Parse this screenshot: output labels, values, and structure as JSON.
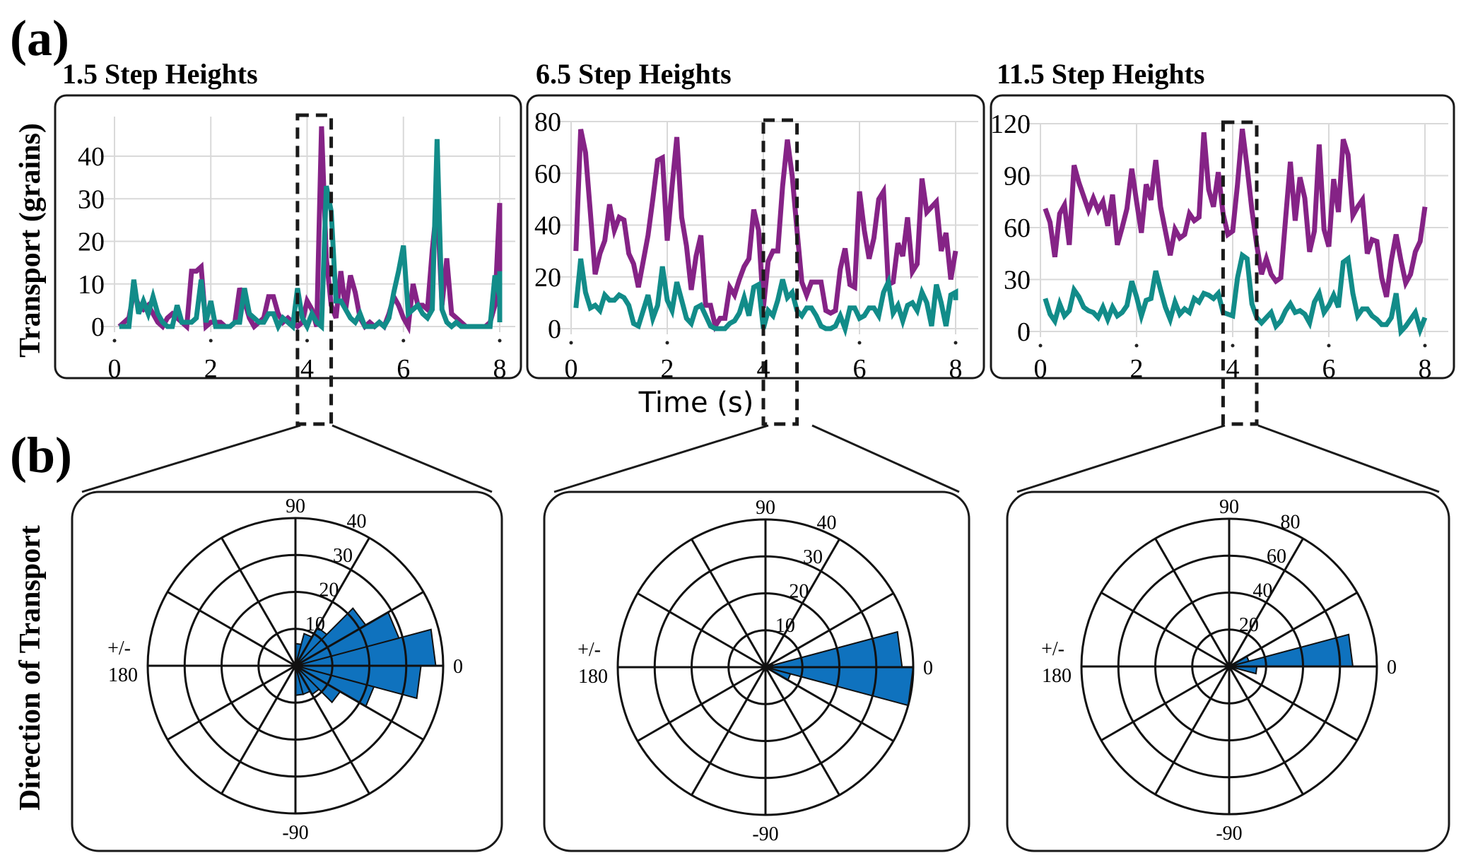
{
  "figure": {
    "panel_a_label": "(a)",
    "panel_b_label": "(b)",
    "ylabel_a": "Transport (grains)",
    "ylabel_b": "Direction of Transport",
    "xlabel_a": "Time (s)"
  },
  "colors": {
    "series_purple": "#852386",
    "series_teal": "#128c89",
    "rose_fill": "#0f72be",
    "grid": "#d9d9d9",
    "frame": "#1a1a1a"
  },
  "chart_data": [
    {
      "type": "line",
      "title": "1.5 Step Heights",
      "xlabel": "Time (s)",
      "ylabel": "Transport (grains)",
      "xlim": [
        0,
        8
      ],
      "ylim": [
        0,
        40
      ],
      "xticks": [
        "0",
        "2",
        "4",
        "6",
        "8"
      ],
      "yticks": [
        "0",
        "10",
        "20",
        "30",
        "40"
      ],
      "grid": true,
      "highlight_window": [
        3.8,
        4.5
      ],
      "x_start": 0.1,
      "x_step": 0.1,
      "series": [
        {
          "name": "purple",
          "color": "#852386",
          "values": [
            0,
            1,
            2,
            8,
            5,
            4,
            5,
            3,
            1,
            0,
            2,
            3,
            2,
            1,
            0,
            13,
            13,
            14,
            0,
            1,
            1,
            1,
            0,
            0,
            1,
            9,
            6,
            2,
            0,
            1,
            2,
            7,
            7,
            3,
            1,
            2,
            1,
            0,
            1,
            6,
            4,
            0,
            47,
            16,
            5,
            2,
            13,
            4,
            12,
            8,
            2,
            0,
            1,
            0,
            1,
            0,
            3,
            7,
            5,
            2,
            0,
            10,
            5,
            5,
            4,
            18,
            29,
            5,
            16,
            3,
            2,
            1,
            0,
            0,
            0,
            0,
            0,
            1,
            5,
            29,
            5,
            14
          ]
        },
        {
          "name": "teal",
          "color": "#128c89",
          "values": [
            0,
            0,
            0,
            11,
            3,
            6,
            3,
            7,
            3,
            1,
            0,
            0,
            5,
            1,
            1,
            1,
            2,
            11,
            1,
            6,
            0,
            0,
            0,
            0,
            1,
            1,
            9,
            3,
            2,
            1,
            1,
            3,
            3,
            0,
            2,
            1,
            0,
            9,
            2,
            0,
            3,
            1,
            0,
            33,
            27,
            6,
            6,
            4,
            2,
            1,
            3,
            0,
            0,
            0,
            1,
            0,
            2,
            8,
            13,
            19,
            3,
            4,
            5,
            3,
            2,
            4,
            44,
            4,
            1,
            0,
            1,
            0,
            0,
            0,
            0,
            0,
            0,
            0,
            12,
            7,
            2,
            13,
            1,
            1
          ]
        }
      ]
    },
    {
      "type": "line",
      "title": "6.5 Step Heights",
      "xlabel": "Time (s)",
      "ylabel": "Transport (grains)",
      "xlim": [
        0,
        8
      ],
      "ylim": [
        0,
        80
      ],
      "xticks": [
        "0",
        "2",
        "4",
        "6",
        "8"
      ],
      "yticks": [
        "0",
        "20",
        "40",
        "60",
        "80"
      ],
      "grid": true,
      "highlight_window": [
        4.0,
        4.7
      ],
      "x_start": 0.1,
      "x_step": 0.1,
      "series": [
        {
          "name": "purple",
          "color": "#852386",
          "values": [
            30,
            77,
            68,
            45,
            21,
            29,
            34,
            48,
            38,
            43,
            42,
            29,
            25,
            16,
            26,
            36,
            50,
            65,
            66,
            34,
            55,
            74,
            43,
            32,
            15,
            28,
            36,
            9,
            9,
            1,
            4,
            4,
            16,
            13,
            19,
            24,
            27,
            46,
            38,
            8,
            26,
            30,
            30,
            55,
            73,
            59,
            38,
            18,
            13,
            18,
            18,
            18,
            7,
            6,
            7,
            23,
            31,
            17,
            16,
            53,
            38,
            27,
            35,
            50,
            53,
            17,
            18,
            33,
            28,
            43,
            22,
            25,
            58,
            45,
            47,
            49,
            30,
            37,
            19,
            30
          ]
        },
        {
          "name": "teal",
          "color": "#128c89",
          "values": [
            8,
            27,
            14,
            8,
            9,
            7,
            13,
            11,
            11,
            13,
            12,
            9,
            2,
            1,
            7,
            13,
            4,
            9,
            24,
            11,
            7,
            18,
            11,
            4,
            2,
            8,
            9,
            5,
            1,
            0,
            0,
            0,
            2,
            3,
            6,
            12,
            5,
            16,
            17,
            0,
            7,
            5,
            11,
            19,
            12,
            14,
            7,
            5,
            8,
            8,
            5,
            1,
            0,
            0,
            1,
            5,
            0,
            8,
            8,
            4,
            5,
            8,
            8,
            5,
            14,
            18,
            6,
            9,
            3,
            9,
            10,
            7,
            14,
            10,
            1,
            17,
            10,
            1,
            13,
            14,
            11
          ]
        }
      ]
    },
    {
      "type": "line",
      "title": "11.5 Step Heights",
      "xlabel": "Time (s)",
      "ylabel": "Transport (grains)",
      "xlim": [
        0,
        8
      ],
      "ylim": [
        0,
        120
      ],
      "xticks": [
        "0",
        "2",
        "4",
        "6",
        "8"
      ],
      "yticks": [
        "0",
        "30",
        "60",
        "90",
        "120"
      ],
      "grid": true,
      "highlight_window": [
        3.8,
        4.5
      ],
      "x_start": 0.1,
      "x_step": 0.1,
      "series": [
        {
          "name": "purple",
          "color": "#852386",
          "values": [
            71,
            63,
            43,
            68,
            73,
            50,
            96,
            86,
            78,
            70,
            77,
            70,
            75,
            61,
            79,
            50,
            60,
            71,
            94,
            75,
            57,
            85,
            76,
            99,
            72,
            58,
            44,
            59,
            54,
            56,
            68,
            64,
            66,
            115,
            82,
            72,
            92,
            68,
            56,
            58,
            85,
            117,
            95,
            70,
            50,
            33,
            42,
            33,
            29,
            31,
            65,
            98,
            64,
            89,
            77,
            46,
            58,
            108,
            59,
            49,
            88,
            69,
            111,
            102,
            67,
            72,
            76,
            45,
            53,
            52,
            31,
            20,
            41,
            56,
            41,
            28,
            33,
            46,
            52,
            72
          ]
        },
        {
          "name": "teal",
          "color": "#128c89",
          "values": [
            19,
            10,
            6,
            16,
            9,
            12,
            24,
            20,
            14,
            12,
            11,
            8,
            14,
            7,
            14,
            9,
            11,
            15,
            29,
            20,
            9,
            18,
            19,
            35,
            24,
            14,
            7,
            17,
            10,
            13,
            11,
            19,
            17,
            22,
            21,
            19,
            22,
            11,
            10,
            9,
            31,
            44,
            42,
            16,
            8,
            5,
            8,
            11,
            3,
            6,
            12,
            16,
            11,
            12,
            10,
            5,
            17,
            22,
            11,
            15,
            21,
            14,
            40,
            42,
            22,
            9,
            13,
            13,
            9,
            7,
            4,
            4,
            8,
            22,
            0,
            3,
            7,
            11,
            1,
            8
          ]
        }
      ]
    },
    {
      "type": "polar_bar",
      "title": "Direction of Transport (1.5 Step Heights, window ~3.8-4.5 s)",
      "angle_unit": "degrees",
      "angle_labels": [
        "0",
        "90",
        "+/-",
        "180",
        "-90"
      ],
      "radial_max": 40,
      "radial_ticks": [
        "10",
        "20",
        "30",
        "40"
      ],
      "bin_width_deg": 15,
      "bins": [
        {
          "from": 0,
          "to": 15,
          "value": 38
        },
        {
          "from": 15,
          "to": 30,
          "value": 29
        },
        {
          "from": 30,
          "to": 45,
          "value": 22
        },
        {
          "from": 45,
          "to": 60,
          "value": 12
        },
        {
          "from": 60,
          "to": 75,
          "value": 9
        },
        {
          "from": 75,
          "to": 90,
          "value": 6
        },
        {
          "from": -15,
          "to": 0,
          "value": 34
        },
        {
          "from": -30,
          "to": -15,
          "value": 22
        },
        {
          "from": -45,
          "to": -30,
          "value": 14
        },
        {
          "from": -60,
          "to": -45,
          "value": 9
        },
        {
          "from": -75,
          "to": -60,
          "value": 8
        },
        {
          "from": -90,
          "to": -75,
          "value": 8
        }
      ]
    },
    {
      "type": "polar_bar",
      "title": "Direction of Transport (6.5 Step Heights, window ~4.0-4.7 s)",
      "angle_unit": "degrees",
      "angle_labels": [
        "0",
        "90",
        "+/-",
        "180",
        "-90"
      ],
      "radial_max": 40,
      "radial_ticks": [
        "10",
        "20",
        "30",
        "40"
      ],
      "bin_width_deg": 15,
      "bins": [
        {
          "from": 0,
          "to": 15,
          "value": 37
        },
        {
          "from": 15,
          "to": 30,
          "value": 2
        },
        {
          "from": -15,
          "to": 0,
          "value": 40
        },
        {
          "from": -30,
          "to": -15,
          "value": 7
        }
      ]
    },
    {
      "type": "polar_bar",
      "title": "Direction of Transport (11.5 Step Heights, window ~3.8-4.5 s)",
      "angle_unit": "degrees",
      "angle_labels": [
        "0",
        "90",
        "+/-",
        "180",
        "-90"
      ],
      "radial_max": 80,
      "radial_ticks": [
        "20",
        "40",
        "60",
        "80"
      ],
      "bin_width_deg": 15,
      "bins": [
        {
          "from": 0,
          "to": 15,
          "value": 67
        },
        {
          "from": 15,
          "to": 30,
          "value": 11
        },
        {
          "from": -15,
          "to": 0,
          "value": 15
        }
      ]
    }
  ]
}
